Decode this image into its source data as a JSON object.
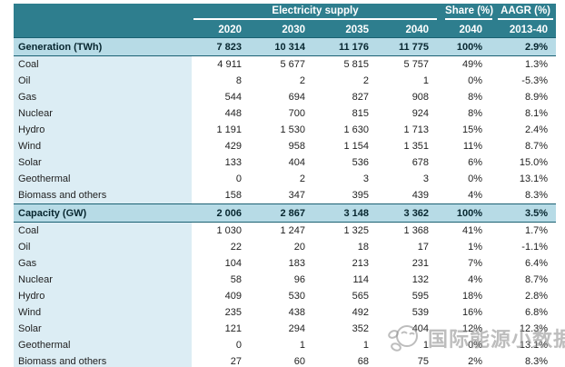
{
  "table": {
    "header": {
      "supply_title": "Electricity supply",
      "share_title": "Share (%)",
      "aagr_title": "AAGR (%)",
      "years": [
        "2020",
        "2030",
        "2035",
        "2040"
      ],
      "share_year": "2040",
      "aagr_period": "2013-40"
    },
    "sections": [
      {
        "title": "Generation (TWh)",
        "totals": [
          "7 823",
          "10 314",
          "11 176",
          "11 775",
          "100%",
          "2.9%"
        ],
        "rows": [
          {
            "label": "Coal",
            "values": [
              "4 911",
              "5 677",
              "5 815",
              "5 757",
              "49%",
              "1.3%"
            ]
          },
          {
            "label": "Oil",
            "values": [
              "8",
              "2",
              "2",
              "1",
              "0%",
              "-5.3%"
            ]
          },
          {
            "label": "Gas",
            "values": [
              "544",
              "694",
              "827",
              "908",
              "8%",
              "8.9%"
            ]
          },
          {
            "label": "Nuclear",
            "values": [
              "448",
              "700",
              "815",
              "924",
              "8%",
              "8.1%"
            ]
          },
          {
            "label": "Hydro",
            "values": [
              "1 191",
              "1 530",
              "1 630",
              "1 713",
              "15%",
              "2.4%"
            ]
          },
          {
            "label": "Wind",
            "values": [
              "429",
              "958",
              "1 154",
              "1 351",
              "11%",
              "8.7%"
            ]
          },
          {
            "label": "Solar",
            "values": [
              "133",
              "404",
              "536",
              "678",
              "6%",
              "15.0%"
            ]
          },
          {
            "label": "Geothermal",
            "values": [
              "0",
              "2",
              "3",
              "3",
              "0%",
              "13.1%"
            ]
          },
          {
            "label": "Biomass and others",
            "values": [
              "158",
              "347",
              "395",
              "439",
              "4%",
              "8.3%"
            ]
          }
        ]
      },
      {
        "title": "Capacity (GW)",
        "totals": [
          "2 006",
          "2 867",
          "3 148",
          "3 362",
          "100%",
          "3.5%"
        ],
        "rows": [
          {
            "label": "Coal",
            "values": [
              "1 030",
              "1 247",
              "1 325",
              "1 368",
              "41%",
              "1.7%"
            ]
          },
          {
            "label": "Oil",
            "values": [
              "22",
              "20",
              "18",
              "17",
              "1%",
              "-1.1%"
            ]
          },
          {
            "label": "Gas",
            "values": [
              "104",
              "183",
              "213",
              "231",
              "7%",
              "6.4%"
            ]
          },
          {
            "label": "Nuclear",
            "values": [
              "58",
              "96",
              "114",
              "132",
              "4%",
              "8.7%"
            ]
          },
          {
            "label": "Hydro",
            "values": [
              "409",
              "530",
              "565",
              "595",
              "18%",
              "2.8%"
            ]
          },
          {
            "label": "Wind",
            "values": [
              "235",
              "438",
              "492",
              "539",
              "16%",
              "6.8%"
            ]
          },
          {
            "label": "Solar",
            "values": [
              "121",
              "294",
              "352",
              "404",
              "12%",
              "12.3%"
            ]
          },
          {
            "label": "Geothermal",
            "values": [
              "0",
              "1",
              "1",
              "1",
              "0%",
              "13.1%"
            ]
          },
          {
            "label": "Biomass and others",
            "values": [
              "27",
              "60",
              "68",
              "75",
              "2%",
              "8.3%"
            ]
          }
        ]
      }
    ]
  },
  "watermark": {
    "text": "国际能源小数据"
  },
  "colors": {
    "header_teal": "#2e7e8e",
    "section_row_bg": "#b7dbe6",
    "label_column_bg": "#dcedf4",
    "rule_dark_teal": "#1a6072",
    "watermark_gray": "#989898"
  },
  "chart_data": {
    "type": "table",
    "title": "Electricity supply",
    "column_groups": [
      "Electricity supply (2020-2040)",
      "Share (%) 2040",
      "AAGR (%) 2013-40"
    ],
    "columns": [
      "2020",
      "2030",
      "2035",
      "2040",
      "Share (%) 2040",
      "AAGR (%) 2013-40"
    ],
    "sections": [
      {
        "name": "Generation (TWh)",
        "total": [
          7823,
          10314,
          11176,
          11775,
          100,
          2.9
        ],
        "rows": [
          {
            "label": "Coal",
            "values": [
              4911,
              5677,
              5815,
              5757,
              49,
              1.3
            ]
          },
          {
            "label": "Oil",
            "values": [
              8,
              2,
              2,
              1,
              0,
              -5.3
            ]
          },
          {
            "label": "Gas",
            "values": [
              544,
              694,
              827,
              908,
              8,
              8.9
            ]
          },
          {
            "label": "Nuclear",
            "values": [
              448,
              700,
              815,
              924,
              8,
              8.1
            ]
          },
          {
            "label": "Hydro",
            "values": [
              1191,
              1530,
              1630,
              1713,
              15,
              2.4
            ]
          },
          {
            "label": "Wind",
            "values": [
              429,
              958,
              1154,
              1351,
              11,
              8.7
            ]
          },
          {
            "label": "Solar",
            "values": [
              133,
              404,
              536,
              678,
              6,
              15.0
            ]
          },
          {
            "label": "Geothermal",
            "values": [
              0,
              2,
              3,
              3,
              0,
              13.1
            ]
          },
          {
            "label": "Biomass and others",
            "values": [
              158,
              347,
              395,
              439,
              4,
              8.3
            ]
          }
        ]
      },
      {
        "name": "Capacity (GW)",
        "total": [
          2006,
          2867,
          3148,
          3362,
          100,
          3.5
        ],
        "rows": [
          {
            "label": "Coal",
            "values": [
              1030,
              1247,
              1325,
              1368,
              41,
              1.7
            ]
          },
          {
            "label": "Oil",
            "values": [
              22,
              20,
              18,
              17,
              1,
              -1.1
            ]
          },
          {
            "label": "Gas",
            "values": [
              104,
              183,
              213,
              231,
              7,
              6.4
            ]
          },
          {
            "label": "Nuclear",
            "values": [
              58,
              96,
              114,
              132,
              4,
              8.7
            ]
          },
          {
            "label": "Hydro",
            "values": [
              409,
              530,
              565,
              595,
              18,
              2.8
            ]
          },
          {
            "label": "Wind",
            "values": [
              235,
              438,
              492,
              539,
              16,
              6.8
            ]
          },
          {
            "label": "Solar",
            "values": [
              121,
              294,
              352,
              404,
              12,
              12.3
            ]
          },
          {
            "label": "Geothermal",
            "values": [
              0,
              1,
              1,
              1,
              0,
              13.1
            ]
          },
          {
            "label": "Biomass and others",
            "values": [
              27,
              60,
              68,
              75,
              2,
              8.3
            ]
          }
        ]
      }
    ]
  }
}
